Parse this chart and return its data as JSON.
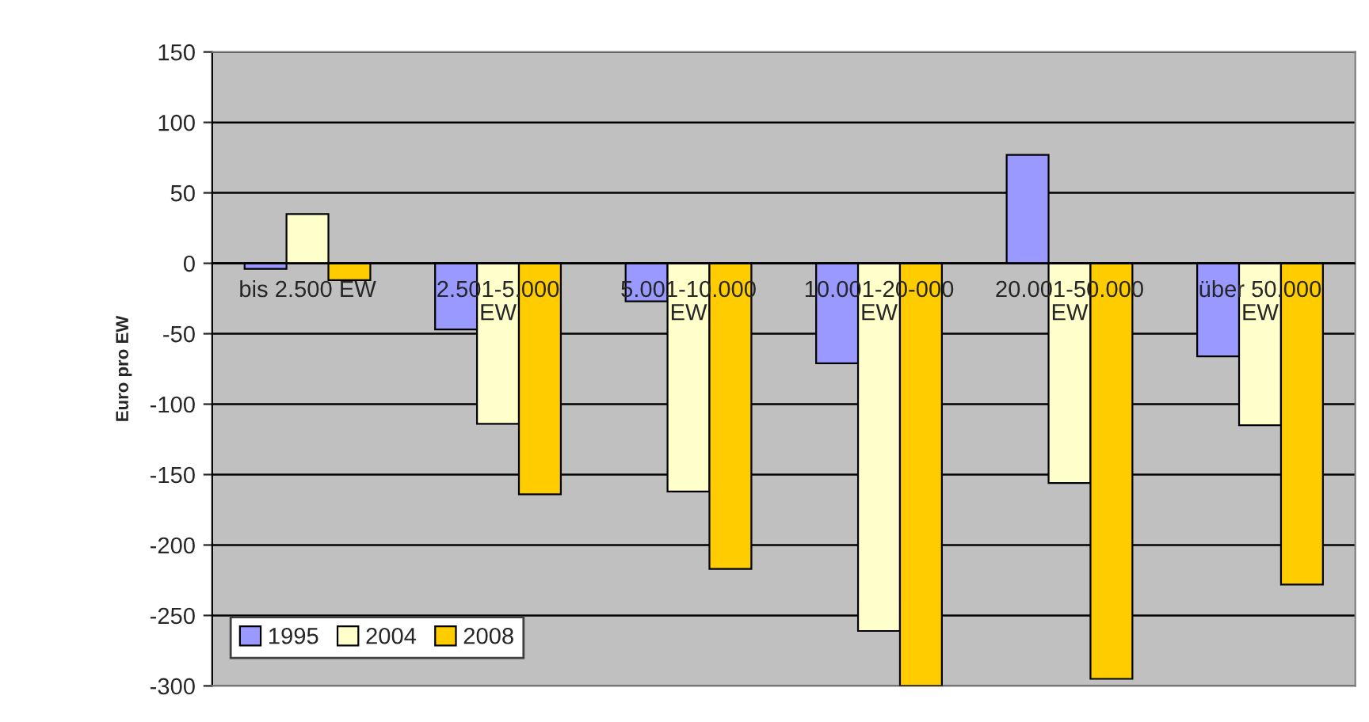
{
  "chart_data": {
    "type": "bar",
    "ylabel": "Euro pro EW",
    "categories": [
      "bis 2.500 EW",
      "2.501-5.000\nEW",
      "5.001-10.000\nEW",
      "10.001-20-000\nEW",
      "20.001-50.000\nEW",
      "über 50.000\nEW"
    ],
    "series": [
      {
        "name": "1995",
        "color": "#9999ff",
        "values": [
          -4,
          -47,
          -27,
          -71,
          77,
          -66
        ]
      },
      {
        "name": "2004",
        "color": "#ffffcc",
        "values": [
          35,
          -114,
          -162,
          -261,
          -156,
          -115
        ]
      },
      {
        "name": "2008",
        "color": "#ffcc00",
        "values": [
          -12,
          -164,
          -217,
          -300,
          -295,
          -228
        ]
      }
    ],
    "ylim": [
      -300,
      150
    ],
    "yticks": [
      -300,
      -250,
      -200,
      -150,
      -100,
      -50,
      0,
      50,
      100,
      150
    ],
    "grid": "y",
    "legend": "bottom left"
  }
}
